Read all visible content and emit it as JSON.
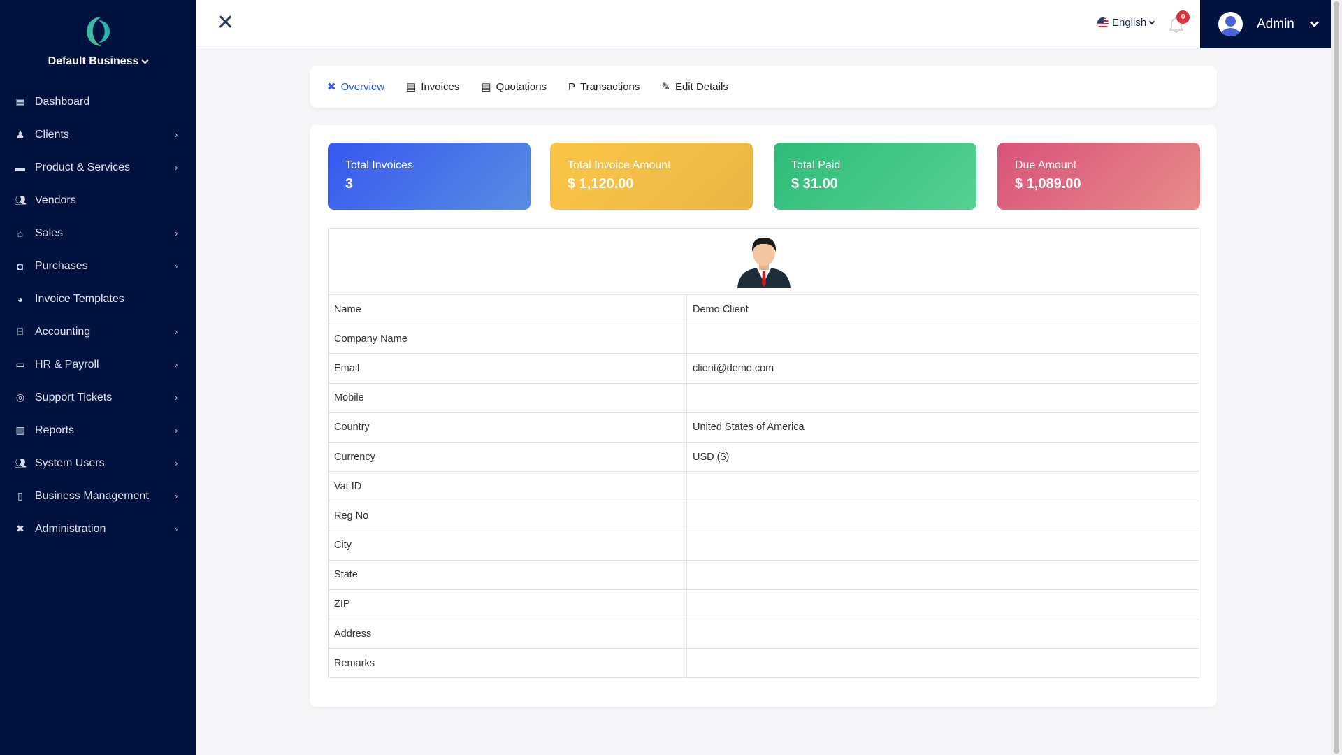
{
  "sidebar": {
    "business": "Default Business",
    "items": [
      {
        "label": "Dashboard",
        "icon": "grid-icon",
        "sub": false
      },
      {
        "label": "Clients",
        "icon": "user-tie-icon",
        "sub": true
      },
      {
        "label": "Product & Services",
        "icon": "box-icon",
        "sub": true
      },
      {
        "label": "Vendors",
        "icon": "users-icon",
        "sub": false
      },
      {
        "label": "Sales",
        "icon": "basket-icon",
        "sub": true
      },
      {
        "label": "Purchases",
        "icon": "bag-icon",
        "sub": true
      },
      {
        "label": "Invoice Templates",
        "icon": "palette-icon",
        "sub": false
      },
      {
        "label": "Accounting",
        "icon": "bank-icon",
        "sub": true
      },
      {
        "label": "HR & Payroll",
        "icon": "money-check-icon",
        "sub": true
      },
      {
        "label": "Support Tickets",
        "icon": "life-ring-icon",
        "sub": true
      },
      {
        "label": "Reports",
        "icon": "chart-bar-icon",
        "sub": true
      },
      {
        "label": "System Users",
        "icon": "users-icon",
        "sub": true
      },
      {
        "label": "Business Management",
        "icon": "building-icon",
        "sub": true
      },
      {
        "label": "Administration",
        "icon": "tools-icon",
        "sub": true
      }
    ]
  },
  "topbar": {
    "language": "English",
    "notifications": "0",
    "user": "Admin"
  },
  "tabs": [
    {
      "label": "Overview",
      "icon": "tools-icon",
      "active": true
    },
    {
      "label": "Invoices",
      "icon": "receipt-icon"
    },
    {
      "label": "Quotations",
      "icon": "receipt-icon"
    },
    {
      "label": "Transactions",
      "icon": "paypal-icon"
    },
    {
      "label": "Edit Details",
      "icon": "edit-icon"
    }
  ],
  "stats": [
    {
      "title": "Total Invoices",
      "value": "3"
    },
    {
      "title": "Total Invoice Amount",
      "value": "$ 1,120.00"
    },
    {
      "title": "Total Paid",
      "value": "$ 31.00"
    },
    {
      "title": "Due Amount",
      "value": "$ 1,089.00"
    }
  ],
  "details": [
    {
      "label": "Name",
      "value": "Demo Client"
    },
    {
      "label": "Company Name",
      "value": ""
    },
    {
      "label": "Email",
      "value": "client@demo.com"
    },
    {
      "label": "Mobile",
      "value": ""
    },
    {
      "label": "Country",
      "value": "United States of America"
    },
    {
      "label": "Currency",
      "value": "USD ($)"
    },
    {
      "label": "Vat ID",
      "value": ""
    },
    {
      "label": "Reg No",
      "value": ""
    },
    {
      "label": "City",
      "value": ""
    },
    {
      "label": "State",
      "value": ""
    },
    {
      "label": "ZIP",
      "value": ""
    },
    {
      "label": "Address",
      "value": ""
    },
    {
      "label": "Remarks",
      "value": ""
    }
  ]
}
